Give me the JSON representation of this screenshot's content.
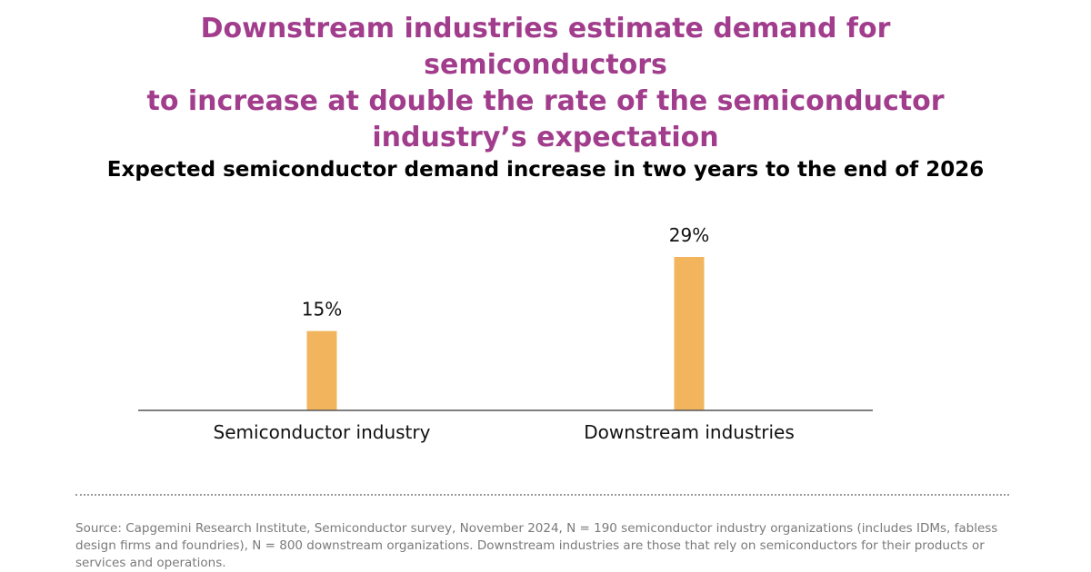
{
  "headline": {
    "line1": "Downstream industries estimate demand for semiconductors",
    "line2": "to increase at double the rate of the semiconductor",
    "line3": "industry’s expectation"
  },
  "chart_data": {
    "type": "bar",
    "title": "Expected semiconductor demand increase in two years to the end of 2026",
    "xlabel": "",
    "ylabel": "",
    "categories": [
      "Semiconductor industry",
      "Downstream industries"
    ],
    "values": [
      15,
      29
    ],
    "data_labels": [
      "15%",
      "29%"
    ],
    "unit": "%",
    "ylim": [
      0,
      35
    ],
    "grid": false,
    "legend": "none",
    "bar_color": "#f2b55e",
    "axis_color": "#555555"
  },
  "footer": {
    "source": "Source: Capgemini Research Institute, Semiconductor survey, November 2024, N = 190 semiconductor industry organizations (includes IDMs, fabless design firms and foundries), N = 800 downstream organizations. Downstream industries are those that rely on semiconductors for their products or services and operations."
  }
}
